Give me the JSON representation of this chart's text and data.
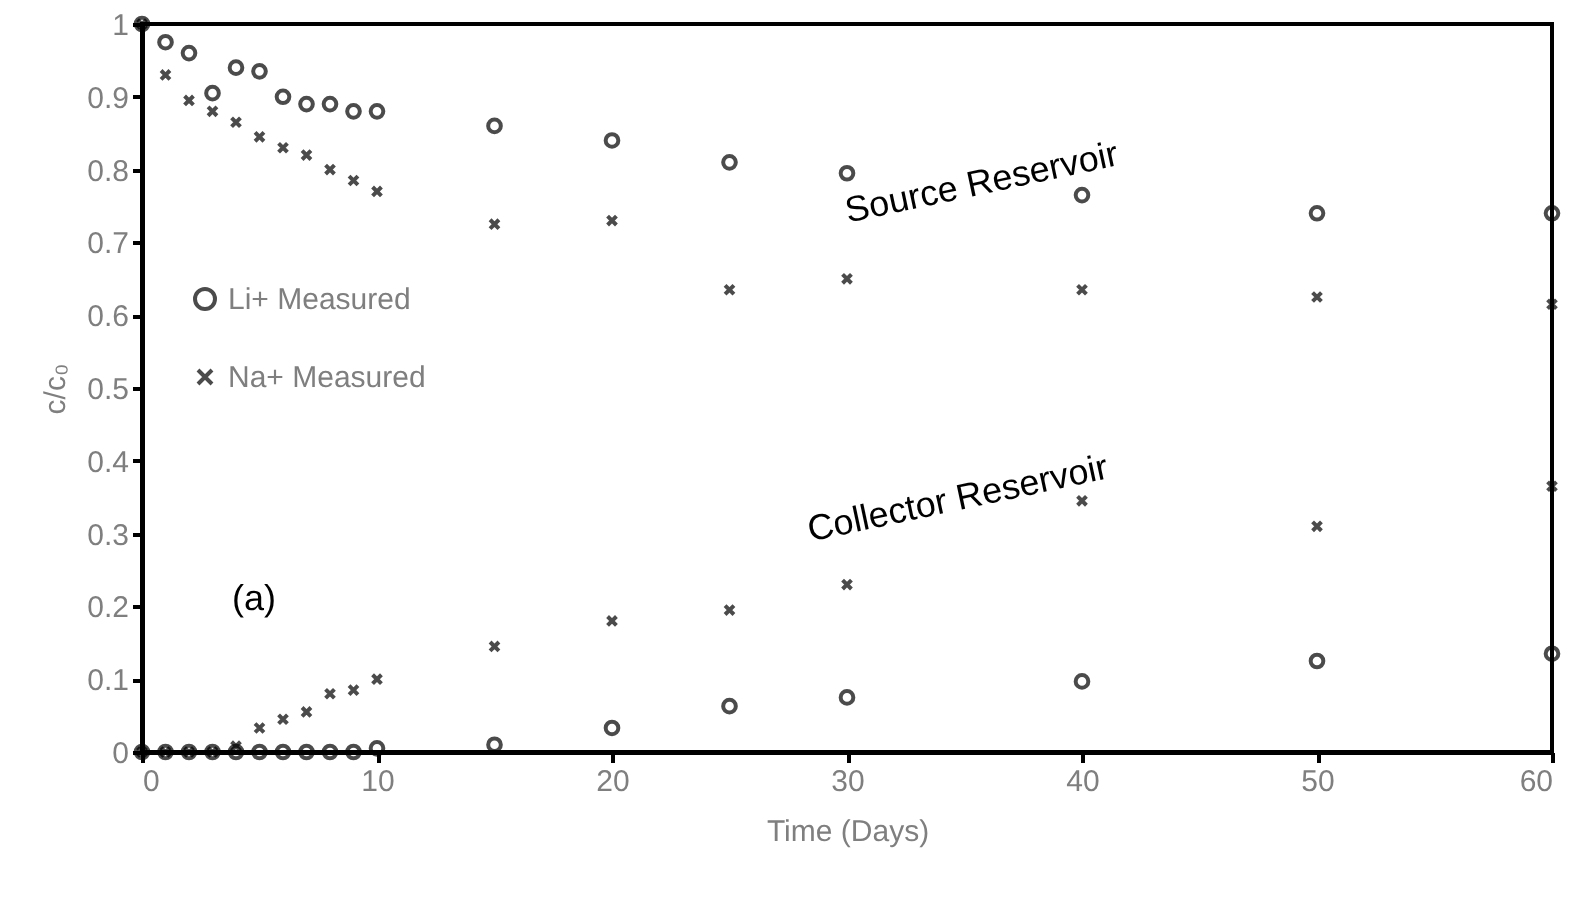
{
  "chart_data": {
    "type": "scatter",
    "xlabel": "Time (Days)",
    "ylabel": "c/c₀",
    "xlim": [
      0,
      60
    ],
    "xticks": [
      0,
      10,
      20,
      30,
      40,
      50,
      60
    ],
    "ylim": [
      0,
      1
    ],
    "yticks": [
      0,
      0.1,
      0.2,
      0.3,
      0.4,
      0.5,
      0.6,
      0.7,
      0.8,
      0.9,
      1
    ],
    "grid": false,
    "legend": "left",
    "series": [
      {
        "name": "Li+ Measured",
        "color": "#000000",
        "marker": "circle",
        "x": [
          0,
          1,
          2,
          3,
          4,
          5,
          6,
          7,
          8,
          9,
          10,
          15,
          20,
          25,
          30,
          40,
          50,
          60,
          0,
          1,
          2,
          3,
          4,
          5,
          6,
          7,
          8,
          9,
          10,
          15,
          20,
          25,
          30,
          40,
          50,
          60
        ],
        "values": [
          1.0,
          0.975,
          0.96,
          0.905,
          0.94,
          0.935,
          0.9,
          0.89,
          0.89,
          0.88,
          0.88,
          0.86,
          0.84,
          0.81,
          0.795,
          0.765,
          0.74,
          0.74,
          0,
          0,
          0,
          0,
          0,
          0,
          0,
          0,
          0,
          0,
          0.005,
          0.01,
          0.033,
          0.063,
          0.075,
          0.097,
          0.125,
          0.135
        ]
      },
      {
        "name": "Na+ Measured",
        "color": "#000000",
        "marker": "cross",
        "x": [
          0,
          1,
          2,
          3,
          4,
          5,
          6,
          7,
          8,
          9,
          10,
          15,
          20,
          25,
          30,
          40,
          50,
          60,
          0,
          1,
          2,
          3,
          4,
          5,
          6,
          7,
          8,
          9,
          10,
          15,
          20,
          25,
          30,
          40,
          50,
          60
        ],
        "values": [
          1.0,
          0.93,
          0.895,
          0.88,
          0.865,
          0.845,
          0.83,
          0.82,
          0.8,
          0.785,
          0.77,
          0.725,
          0.73,
          0.635,
          0.65,
          0.635,
          0.625,
          0.615,
          0,
          0,
          0,
          0,
          0.008,
          0.033,
          0.045,
          0.055,
          0.08,
          0.085,
          0.1,
          0.145,
          0.18,
          0.195,
          0.23,
          0.345,
          0.31,
          0.365
        ]
      }
    ],
    "annotations": [
      "Source Reservoir",
      "Collector Reservoir",
      "(a)"
    ]
  }
}
